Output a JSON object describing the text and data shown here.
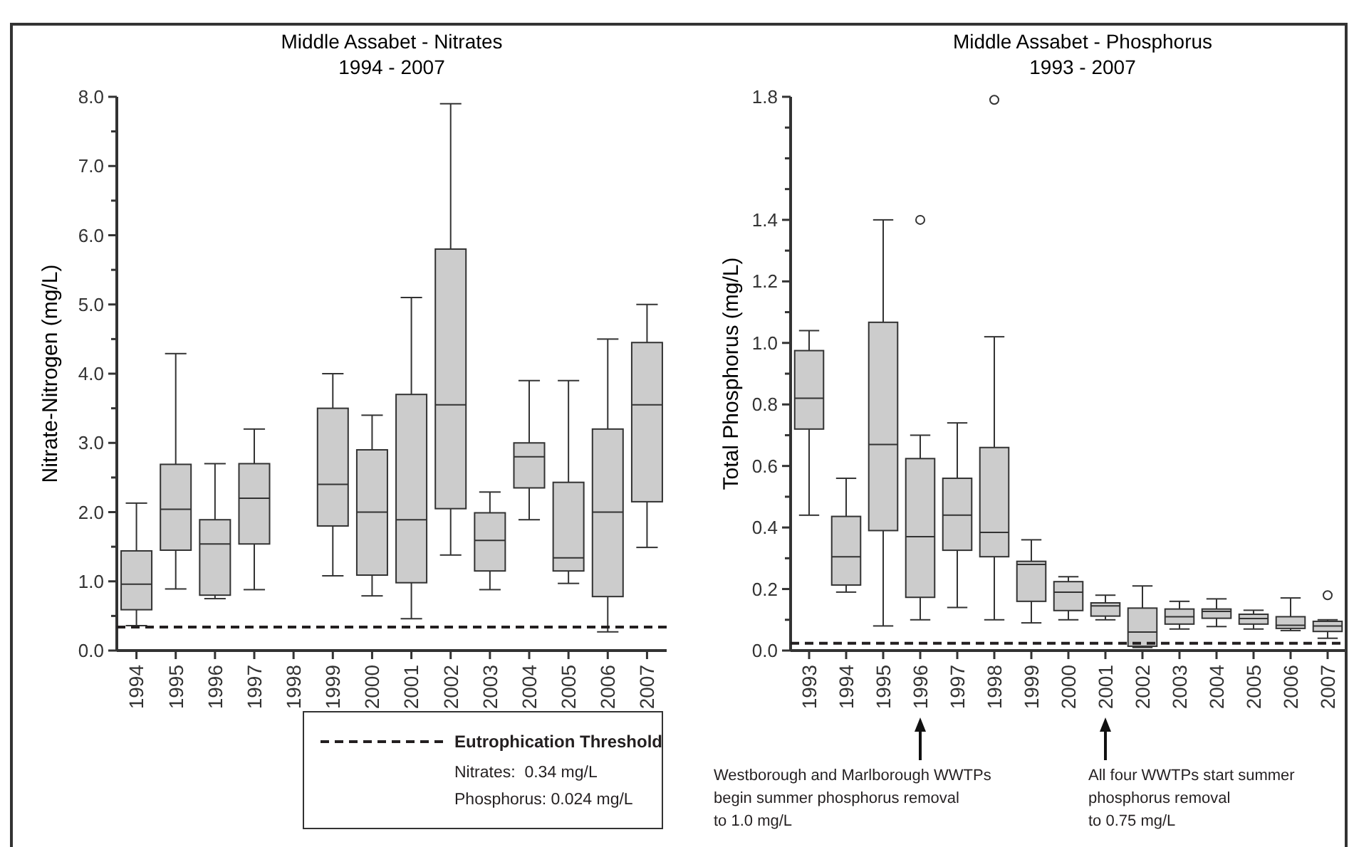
{
  "chart_data": [
    {
      "type": "box",
      "title": "Middle Assabet - Nitrates",
      "subtitle": "1994 - 2007",
      "ylabel": "Nitrate-Nitrogen (mg/L)",
      "categories": [
        "1994",
        "1995",
        "1996",
        "1997",
        "1998",
        "1999",
        "2000",
        "2001",
        "2002",
        "2003",
        "2004",
        "2005",
        "2006",
        "2007"
      ],
      "boxes": [
        {
          "low": 0.36,
          "q1": 0.59,
          "median": 0.96,
          "q3": 1.44,
          "high": 2.13
        },
        {
          "low": 0.89,
          "q1": 1.45,
          "median": 2.04,
          "q3": 2.69,
          "high": 4.29
        },
        {
          "low": 0.75,
          "q1": 0.8,
          "median": 1.54,
          "q3": 1.89,
          "high": 2.7
        },
        {
          "low": 0.88,
          "q1": 1.54,
          "median": 2.2,
          "q3": 2.7,
          "high": 3.2
        },
        null,
        {
          "low": 1.08,
          "q1": 1.8,
          "median": 2.4,
          "q3": 3.5,
          "high": 4.0
        },
        {
          "low": 0.79,
          "q1": 1.09,
          "median": 2.0,
          "q3": 2.9,
          "high": 3.4
        },
        {
          "low": 0.46,
          "q1": 0.98,
          "median": 1.89,
          "q3": 3.7,
          "high": 5.1
        },
        {
          "low": 1.38,
          "q1": 2.05,
          "median": 3.55,
          "q3": 5.8,
          "high": 7.9
        },
        {
          "low": 0.88,
          "q1": 1.15,
          "median": 1.59,
          "q3": 1.99,
          "high": 2.29
        },
        {
          "low": 1.89,
          "q1": 2.35,
          "median": 2.8,
          "q3": 3.0,
          "high": 3.9
        },
        {
          "low": 0.97,
          "q1": 1.15,
          "median": 1.34,
          "q3": 2.43,
          "high": 3.9
        },
        {
          "low": 0.27,
          "q1": 0.78,
          "median": 2.0,
          "q3": 3.2,
          "high": 4.5
        },
        {
          "low": 1.49,
          "q1": 2.15,
          "median": 3.55,
          "q3": 4.45,
          "high": 5.0
        }
      ],
      "color": "#cccccc",
      "ylim": [
        0,
        8
      ],
      "yticks": [
        {
          "value": 0,
          "label": "0.0"
        },
        {
          "value": 0.5,
          "label": null
        },
        {
          "value": 1,
          "label": "1.0"
        },
        {
          "value": 1.5,
          "label": null
        },
        {
          "value": 2,
          "label": "2.0"
        },
        {
          "value": 2.5,
          "label": null
        },
        {
          "value": 3,
          "label": "3.0"
        },
        {
          "value": 3.5,
          "label": null
        },
        {
          "value": 4,
          "label": "4.0"
        },
        {
          "value": 4.5,
          "label": null
        },
        {
          "value": 5,
          "label": "5.0"
        },
        {
          "value": 5.5,
          "label": null
        },
        {
          "value": 6,
          "label": "6.0"
        },
        {
          "value": 6.5,
          "label": null
        },
        {
          "value": 7,
          "label": "7.0"
        },
        {
          "value": 7.5,
          "label": null
        },
        {
          "value": 8,
          "label": "8.0"
        }
      ],
      "ref_lines": [
        {
          "axis": "y",
          "value": 0.34,
          "label": "Nitrates:  0.34 mg/L",
          "color": "#231f20",
          "line_style": "dashed"
        }
      ],
      "legend_title": "Eutrophication Threshold",
      "legend": "bottom",
      "grid": false
    },
    {
      "type": "box",
      "title": "Middle Assabet - Phosphorus",
      "subtitle": "1993 - 2007",
      "ylabel": "Total Phosphorus (mg/L)",
      "categories": [
        "1993",
        "1994",
        "1995",
        "1996",
        "1997",
        "1998",
        "1999",
        "2000",
        "2001",
        "2002",
        "2003",
        "2004",
        "2005",
        "2006",
        "2007"
      ],
      "boxes": [
        {
          "low": 0.44,
          "q1": 0.72,
          "median": 0.82,
          "q3": 0.975,
          "high": 1.04
        },
        {
          "low": 0.19,
          "q1": 0.213,
          "median": 0.305,
          "q3": 0.436,
          "high": 0.56
        },
        {
          "low": 0.08,
          "q1": 0.39,
          "median": 0.67,
          "q3": 1.067,
          "high": 1.4
        },
        {
          "low": 0.1,
          "q1": 0.173,
          "median": 0.37,
          "q3": 0.624,
          "high": 0.7,
          "outliers": [
            1.4
          ]
        },
        {
          "low": 0.14,
          "q1": 0.326,
          "median": 0.44,
          "q3": 0.56,
          "high": 0.74
        },
        {
          "low": 0.1,
          "q1": 0.305,
          "median": 0.384,
          "q3": 0.66,
          "high": 1.02,
          "outliers": [
            1.79
          ]
        },
        {
          "low": 0.09,
          "q1": 0.16,
          "median": 0.28,
          "q3": 0.29,
          "high": 0.36
        },
        {
          "low": 0.1,
          "q1": 0.13,
          "median": 0.19,
          "q3": 0.224,
          "high": 0.24
        },
        {
          "low": 0.1,
          "q1": 0.112,
          "median": 0.145,
          "q3": 0.155,
          "high": 0.18
        },
        {
          "low": 0.01,
          "q1": 0.014,
          "median": 0.06,
          "q3": 0.138,
          "high": 0.21
        },
        {
          "low": 0.07,
          "q1": 0.086,
          "median": 0.11,
          "q3": 0.135,
          "high": 0.16
        },
        {
          "low": 0.078,
          "q1": 0.105,
          "median": 0.127,
          "q3": 0.135,
          "high": 0.168
        },
        {
          "low": 0.07,
          "q1": 0.086,
          "median": 0.104,
          "q3": 0.118,
          "high": 0.131
        },
        {
          "low": 0.065,
          "q1": 0.072,
          "median": 0.082,
          "q3": 0.11,
          "high": 0.171
        },
        {
          "low": 0.04,
          "q1": 0.062,
          "median": 0.08,
          "q3": 0.095,
          "high": 0.1,
          "outliers": [
            0.18
          ]
        }
      ],
      "color": "#cccccc",
      "ylim": [
        0,
        1.8
      ],
      "yticks": [
        {
          "value": 0,
          "label": "0.0"
        },
        {
          "value": 0.1,
          "label": null
        },
        {
          "value": 0.2,
          "label": "0.2"
        },
        {
          "value": 0.3,
          "label": null
        },
        {
          "value": 0.4,
          "label": "0.4"
        },
        {
          "value": 0.5,
          "label": null
        },
        {
          "value": 0.6,
          "label": "0.6"
        },
        {
          "value": 0.7,
          "label": null
        },
        {
          "value": 0.8,
          "label": "0.8"
        },
        {
          "value": 0.9,
          "label": null
        },
        {
          "value": 1.0,
          "label": "1.0"
        },
        {
          "value": 1.1,
          "label": null
        },
        {
          "value": 1.2,
          "label": "1.2"
        },
        {
          "value": 1.3,
          "label": null
        },
        {
          "value": 1.4,
          "label": "1.4"
        },
        {
          "value": 1.5,
          "label": null
        },
        {
          "value": 1.6,
          "label": null
        },
        {
          "value": 1.7,
          "label": null
        },
        {
          "value": 1.8,
          "label": "1.8"
        }
      ],
      "ref_lines": [
        {
          "axis": "y",
          "value": 0.024,
          "label": "Phosphorus: 0.024 mg/L",
          "color": "#231f20",
          "line_style": "dashed"
        }
      ],
      "annotations": [
        "Westborough and Marlborough WWTPs\nbegin summer phosphorus removal\nto 1.0 mg/L",
        "All four WWTPs start summer\nphosphorus removal\nto 0.75 mg/L"
      ],
      "grid": false
    }
  ]
}
